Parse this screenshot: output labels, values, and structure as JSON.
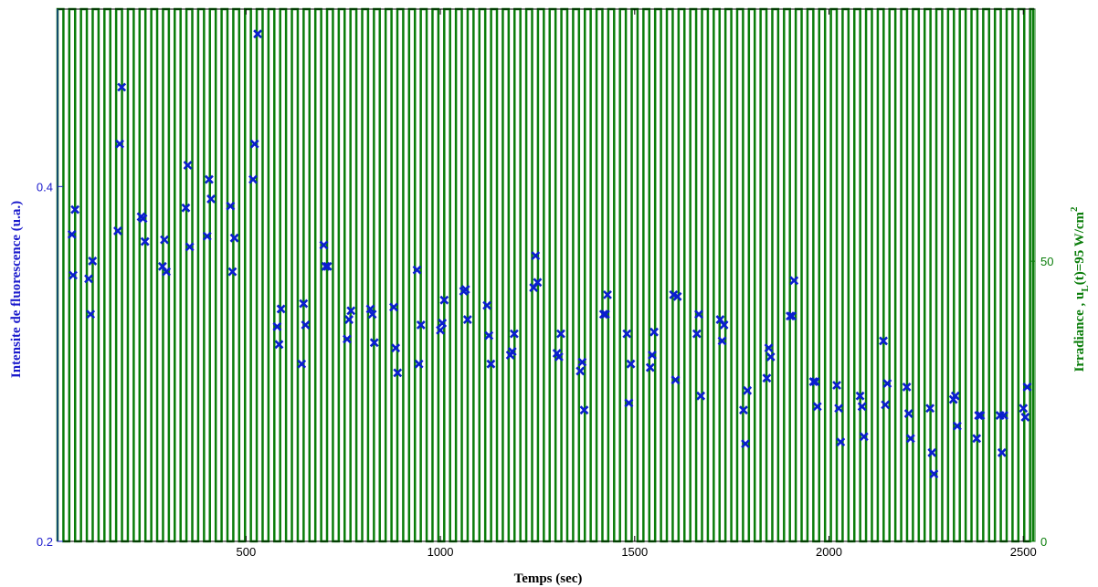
{
  "chart_data": {
    "type": "scatter",
    "title": "",
    "xlabel": "Temps (sec)",
    "ylabel_left": "Intensite de fluorescence (u.a.)",
    "ylabel_right_prefix": "Irradiance , u",
    "ylabel_right_sub": "L",
    "ylabel_right_suffix": "(t)=95 W/cm",
    "ylabel_right_sup": "2",
    "xlim": [
      15,
      2530
    ],
    "ylim_left": [
      0.2,
      0.5
    ],
    "ylim_right": [
      0,
      95
    ],
    "x_ticks": [
      500,
      1000,
      1500,
      2000,
      2500
    ],
    "y_left_ticks": [
      0.2,
      0.4
    ],
    "y_right_ticks": [
      0,
      50
    ],
    "grid": false,
    "colors": {
      "fluorescence": "#0a1ecf",
      "irradiance": "#0a7d0a",
      "left_axis": "#1a1acc",
      "right_axis": "#0a7d0a"
    },
    "series": [
      {
        "type": "scatter",
        "marker": "x",
        "x": [
          52,
          55,
          60,
          95,
          100,
          105,
          170,
          175,
          180,
          230,
          235,
          240,
          285,
          290,
          295,
          345,
          350,
          355,
          400,
          405,
          410,
          460,
          465,
          470,
          518,
          522,
          530,
          580,
          585,
          590,
          643,
          648,
          653,
          700,
          705,
          710,
          760,
          765,
          770,
          820,
          825,
          830,
          880,
          885,
          890,
          940,
          945,
          950,
          1000,
          1005,
          1010,
          1060,
          1065,
          1070,
          1120,
          1125,
          1130,
          1180,
          1185,
          1190,
          1240,
          1245,
          1250,
          1300,
          1305,
          1310,
          1360,
          1365,
          1370,
          1420,
          1425,
          1430,
          1480,
          1485,
          1490,
          1540,
          1545,
          1550,
          1600,
          1605,
          1610,
          1660,
          1665,
          1670,
          1720,
          1725,
          1730,
          1780,
          1785,
          1790,
          1840,
          1845,
          1850,
          1900,
          1905,
          1910,
          1960,
          1965,
          1970,
          2020,
          2025,
          2030,
          2080,
          2085,
          2090,
          2140,
          2145,
          2150,
          2200,
          2205,
          2210,
          2260,
          2265,
          2270,
          2320,
          2325,
          2330,
          2380,
          2385,
          2390,
          2440,
          2445,
          2450,
          2500,
          2505,
          2510
        ],
        "y": [
          0.373,
          0.35,
          0.387,
          0.348,
          0.328,
          0.358,
          0.375,
          0.424,
          0.456,
          0.383,
          0.382,
          0.369,
          0.355,
          0.37,
          0.352,
          0.388,
          0.412,
          0.366,
          0.372,
          0.404,
          0.393,
          0.389,
          0.352,
          0.371,
          0.404,
          0.424,
          0.486,
          0.321,
          0.311,
          0.331,
          0.3,
          0.334,
          0.322,
          0.367,
          0.355,
          0.355,
          0.314,
          0.325,
          0.33,
          0.331,
          0.328,
          0.312,
          0.332,
          0.309,
          0.295,
          0.353,
          0.3,
          0.322,
          0.319,
          0.323,
          0.336,
          0.341,
          0.342,
          0.325,
          0.333,
          0.316,
          0.3,
          0.305,
          0.307,
          0.317,
          0.343,
          0.361,
          0.346,
          0.306,
          0.304,
          0.317,
          0.296,
          0.301,
          0.274,
          0.328,
          0.328,
          0.339,
          0.317,
          0.278,
          0.3,
          0.298,
          0.305,
          0.318,
          0.339,
          0.291,
          0.338,
          0.317,
          0.328,
          0.282,
          0.325,
          0.313,
          0.322,
          0.274,
          0.255,
          0.285,
          0.292,
          0.309,
          0.304,
          0.327,
          0.327,
          0.347,
          0.29,
          0.29,
          0.276,
          0.288,
          0.275,
          0.256,
          0.282,
          0.276,
          0.259,
          0.313,
          0.277,
          0.289,
          0.287,
          0.272,
          0.258,
          0.275,
          0.25,
          0.238,
          0.28,
          0.282,
          0.265,
          0.258,
          0.271,
          0.271,
          0.271,
          0.25,
          0.271,
          0.275,
          0.27,
          0.287
        ]
      },
      {
        "type": "square-wave",
        "name": "",
        "high": 95,
        "low": 0,
        "start": 15,
        "period": 30.15,
        "duty": 0.5,
        "end": 2525
      }
    ]
  }
}
